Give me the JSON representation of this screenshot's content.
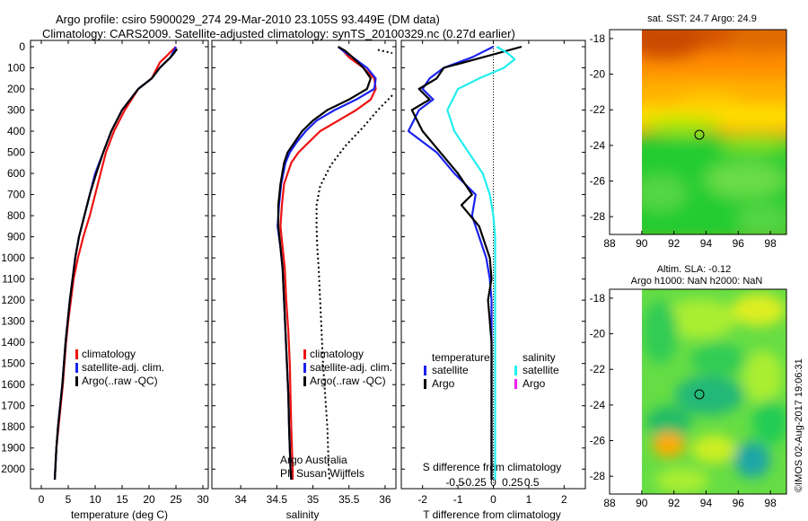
{
  "header": {
    "line1": "Argo profile: csiro 5900029_274 29-Mar-2010 23.105S 93.449E (DM data)",
    "line2": "Climatology: CARS2009. Satellite-adjusted climatology: synTS_20100329.nc (0.27d earlier)"
  },
  "footer": {
    "stamp": "©IMOS 02-Aug-2017 19:06:31",
    "credit_line1": "Argo Australia",
    "credit_line2": "PI: Susan Wijffels"
  },
  "colors": {
    "red": "#ee1111",
    "blue": "#1a22ee",
    "black": "#000000",
    "cyan": "#22eeee",
    "magenta": "#ee22ee"
  },
  "chart_data": [
    {
      "type": "line",
      "xlabel": "temperature (deg C)",
      "xlim": [
        -2,
        31
      ],
      "xticks": [
        0,
        5,
        10,
        15,
        20,
        25,
        30
      ],
      "ylim": [
        2060,
        0
      ],
      "yticks": [
        0,
        100,
        200,
        300,
        400,
        500,
        600,
        700,
        800,
        900,
        1000,
        1100,
        1200,
        1300,
        1400,
        1500,
        1600,
        1700,
        1800,
        1900,
        2000
      ],
      "legend": [
        "climatology",
        "satellite-adj. clim.",
        "Argo(..raw -QC)"
      ],
      "series": [
        {
          "name": "climatology",
          "color": "red",
          "dash": "",
          "x": [
            25.0,
            24.0,
            23.0,
            22.0,
            21.5,
            20.5,
            18.0,
            15.5,
            13.5,
            12.0,
            11.0,
            10.0,
            9.0,
            7.8,
            6.8,
            6.0,
            5.5,
            5.0,
            4.6,
            4.3,
            4.0,
            3.6,
            3.2,
            2.8,
            2.5
          ],
          "y": [
            0,
            25,
            50,
            75,
            100,
            150,
            200,
            300,
            400,
            500,
            600,
            700,
            800,
            900,
            1000,
            1100,
            1200,
            1300,
            1400,
            1500,
            1600,
            1700,
            1800,
            1900,
            2050
          ]
        },
        {
          "name": "satellite-adj. clim.",
          "color": "blue",
          "dash": "",
          "x": [
            25.0,
            24.5,
            24.0,
            23.0,
            22.0,
            20.5,
            18.0,
            15.0,
            13.0,
            11.5,
            10.0,
            9.0,
            8.0,
            7.0,
            6.3,
            5.8,
            5.3,
            4.9,
            4.5,
            4.2,
            3.9,
            3.5,
            3.1,
            2.8,
            2.5
          ],
          "y": [
            0,
            25,
            50,
            75,
            100,
            150,
            200,
            300,
            400,
            500,
            600,
            700,
            800,
            900,
            1000,
            1100,
            1200,
            1300,
            1400,
            1500,
            1600,
            1700,
            1800,
            1900,
            2050
          ]
        },
        {
          "name": "Argo(..raw -QC)",
          "color": "black",
          "dash": "",
          "x": [
            25.2,
            24.8,
            24.0,
            23.0,
            22.0,
            20.5,
            18.0,
            15.0,
            13.0,
            11.5,
            10.2,
            9.0,
            8.0,
            7.0,
            6.3,
            5.8,
            5.3,
            4.9,
            4.5,
            4.2,
            3.9,
            3.5,
            3.1,
            2.8,
            2.5
          ],
          "y": [
            10,
            25,
            50,
            75,
            100,
            150,
            200,
            300,
            400,
            500,
            600,
            700,
            800,
            900,
            1000,
            1100,
            1200,
            1300,
            1400,
            1500,
            1600,
            1700,
            1800,
            1900,
            2050
          ]
        }
      ]
    },
    {
      "type": "line",
      "xlabel": "salinity",
      "xlim": [
        33.6,
        36.15
      ],
      "xticks": [
        34,
        34.5,
        35,
        35.5,
        36
      ],
      "ylim": [
        2060,
        0
      ],
      "legend": [
        "climatology",
        "satellite-adj. clim.",
        "Argo(..raw -QC)"
      ],
      "series": [
        {
          "name": "climatology",
          "color": "red",
          "dash": "",
          "x": [
            35.35,
            35.42,
            35.5,
            35.7,
            35.85,
            35.87,
            35.8,
            35.6,
            35.35,
            35.1,
            34.95,
            34.8,
            34.7,
            34.6,
            34.57,
            34.55,
            34.58,
            34.61,
            34.63,
            34.66,
            34.68,
            34.69,
            34.7,
            34.71,
            34.72,
            34.72
          ],
          "y": [
            0,
            20,
            50,
            100,
            150,
            200,
            250,
            300,
            350,
            400,
            450,
            500,
            550,
            650,
            750,
            850,
            950,
            1050,
            1200,
            1350,
            1500,
            1650,
            1800,
            1900,
            2000,
            2050
          ]
        },
        {
          "name": "satellite-adj. clim.",
          "color": "blue",
          "dash": "",
          "x": [
            35.35,
            35.42,
            35.55,
            35.75,
            35.87,
            35.85,
            35.6,
            35.3,
            35.05,
            34.9,
            34.78,
            34.68,
            34.62,
            34.56,
            34.53,
            34.51,
            34.55,
            34.58,
            34.6,
            34.62,
            34.64,
            34.66,
            34.67,
            34.68,
            34.69,
            34.7
          ],
          "y": [
            0,
            20,
            50,
            100,
            150,
            200,
            250,
            300,
            350,
            400,
            450,
            500,
            550,
            650,
            750,
            850,
            950,
            1050,
            1200,
            1350,
            1500,
            1650,
            1800,
            1900,
            2000,
            2050
          ]
        },
        {
          "name": "Argo(..raw -QC)",
          "color": "black",
          "dash": "",
          "x": [
            35.35,
            35.45,
            35.55,
            35.7,
            35.8,
            35.75,
            35.5,
            35.2,
            35.0,
            34.85,
            34.75,
            34.65,
            34.6,
            34.55,
            34.52,
            34.52,
            34.55,
            34.58,
            34.6,
            34.62,
            34.64,
            34.66,
            34.67,
            34.68,
            34.69,
            34.7
          ],
          "y": [
            0,
            20,
            50,
            100,
            150,
            200,
            250,
            300,
            350,
            400,
            450,
            500,
            550,
            650,
            750,
            850,
            950,
            1050,
            1200,
            1350,
            1500,
            1650,
            1800,
            1900,
            2000,
            2050
          ]
        },
        {
          "name": "",
          "color": "black",
          "dash": "2,3",
          "x": [
            36.1,
            35.9,
            35.7,
            35.45,
            35.25,
            35.1,
            35.05,
            35.05,
            35.06,
            35.08,
            35.1,
            35.12,
            35.14,
            35.16,
            35.18,
            35.2,
            35.21,
            35.22,
            35.23
          ],
          "y": [
            230,
            300,
            380,
            470,
            560,
            660,
            750,
            850,
            950,
            1050,
            1200,
            1350,
            1500,
            1600,
            1700,
            1800,
            1900,
            2000,
            2050
          ]
        },
        {
          "name": "",
          "color": "black",
          "dash": "2,3",
          "x": [
            35.9,
            36.1
          ],
          "y": [
            15,
            30
          ]
        }
      ]
    },
    {
      "type": "line",
      "xlabel": "T difference from climatology",
      "xlabel_top": "S difference from climatology",
      "xlim": [
        -2.6,
        2.6
      ],
      "xticks": [
        -2,
        -1,
        0,
        1,
        2
      ],
      "xticks_top": [
        -0.5,
        -0.25,
        0,
        0.25,
        0.5
      ],
      "ylim": [
        2060,
        0
      ],
      "zero_line": true,
      "legend_headers": [
        "temperature",
        "salinity"
      ],
      "legend": [
        "satellite",
        "Argo",
        "satellite",
        "Argo"
      ],
      "series": [
        {
          "name": "satellite",
          "color": "blue",
          "dash": "",
          "x": [
            0,
            -0.6,
            -1.4,
            -1.8,
            -2.0,
            -1.7,
            -2.1,
            -2.4,
            -1.6,
            -1.1,
            -0.5,
            -0.6,
            -0.4,
            -0.2,
            -0.1,
            -0.05,
            -0.05,
            -0.05,
            -0.05,
            -0.05,
            -0.05,
            -0.05,
            -0.05
          ],
          "y": [
            0,
            50,
            100,
            150,
            200,
            250,
            300,
            400,
            500,
            600,
            700,
            800,
            900,
            1000,
            1100,
            1200,
            1300,
            1400,
            1500,
            1600,
            1700,
            1800,
            2050
          ]
        },
        {
          "name": "Argo",
          "color": "black",
          "dash": "",
          "x": [
            0.8,
            -0.3,
            -1.4,
            -1.6,
            -2.1,
            -1.8,
            -2.3,
            -2.0,
            -1.5,
            -1.0,
            -0.6,
            -0.9,
            -0.4,
            -0.1,
            -0.05,
            -0.15,
            -0.1,
            -0.05,
            -0.05,
            -0.05,
            -0.05,
            -0.05,
            -0.05
          ],
          "y": [
            0,
            50,
            100,
            150,
            200,
            250,
            300,
            400,
            500,
            600,
            700,
            750,
            850,
            1000,
            1100,
            1200,
            1300,
            1400,
            1500,
            1600,
            1700,
            1800,
            2050
          ]
        },
        {
          "name": "satellite",
          "color": "cyan",
          "dash": "",
          "x": [
            0.1,
            0.4,
            0.6,
            0.3,
            -0.4,
            -1.0,
            -1.3,
            -1.1,
            -0.7,
            -0.3,
            -0.1,
            0,
            0.05,
            0.05,
            0.05,
            0.05,
            0.05,
            0.05,
            0.05,
            0.05
          ],
          "y": [
            0,
            30,
            60,
            100,
            150,
            200,
            300,
            400,
            500,
            600,
            700,
            800,
            900,
            1000,
            1200,
            1400,
            1600,
            1800,
            1950,
            2050
          ]
        }
      ]
    },
    {
      "type": "heatmap",
      "title": "sat. SST: 24.7  Argo: 24.9",
      "xlim": [
        88,
        99
      ],
      "ylim": [
        -29,
        -17.5
      ],
      "xticks": [
        88,
        90,
        92,
        94,
        96,
        98
      ],
      "yticks": [
        -18,
        -20,
        -22,
        -24,
        -26,
        -28
      ],
      "marker": [
        93.449,
        -23.105
      ]
    },
    {
      "type": "heatmap",
      "title_line1": "Altim. SLA: -0.12",
      "title_line2": "Argo h1000: NaN h2000: NaN",
      "xlim": [
        88,
        99
      ],
      "ylim": [
        -29,
        -17.5
      ],
      "xticks": [
        88,
        90,
        92,
        94,
        96,
        98
      ],
      "yticks": [
        -18,
        -20,
        -22,
        -24,
        -26,
        -28
      ],
      "marker": [
        93.449,
        -23.105
      ]
    }
  ]
}
